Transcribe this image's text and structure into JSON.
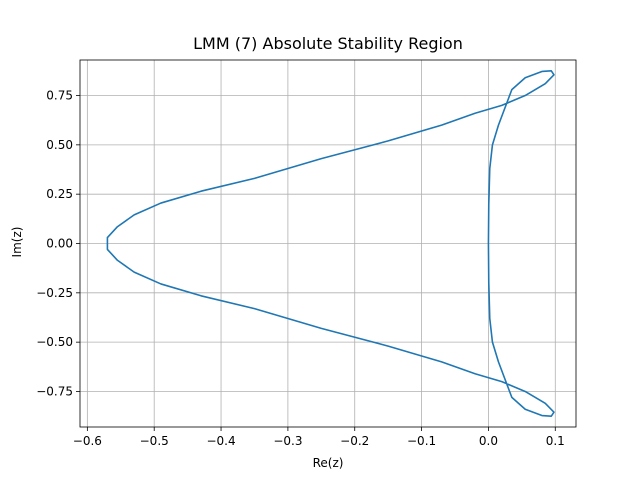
{
  "chart_data": {
    "type": "line",
    "title": "LMM (7) Absolute Stability Region",
    "xlabel": "Re(z)",
    "ylabel": "Im(z)",
    "xlim": [
      -0.611,
      0.131
    ],
    "ylim": [
      -0.93,
      0.93
    ],
    "xticks": [
      -0.6,
      -0.5,
      -0.4,
      -0.3,
      -0.2,
      -0.1,
      0.0,
      0.1
    ],
    "xtick_labels": [
      "−0.6",
      "−0.5",
      "−0.4",
      "−0.3",
      "−0.2",
      "−0.1",
      "0.0",
      "0.1"
    ],
    "yticks": [
      -0.75,
      -0.5,
      -0.25,
      0.0,
      0.25,
      0.5,
      0.75
    ],
    "ytick_labels": [
      "−0.75",
      "−0.50",
      "−0.25",
      "0.00",
      "0.25",
      "0.50",
      "0.75"
    ],
    "grid": true,
    "legend": "none",
    "colors": {
      "series": "#1f77b4"
    },
    "series": [
      {
        "points": [
          [
            0.0,
            0.0
          ],
          [
            0.0005,
            0.2
          ],
          [
            0.002,
            0.38
          ],
          [
            0.006,
            0.5
          ],
          [
            0.015,
            0.6
          ],
          [
            0.035,
            0.78
          ],
          [
            0.055,
            0.84
          ],
          [
            0.08,
            0.872
          ],
          [
            0.094,
            0.875
          ],
          [
            0.098,
            0.855
          ],
          [
            0.085,
            0.81
          ],
          [
            0.055,
            0.75
          ],
          [
            0.02,
            0.7
          ],
          [
            -0.02,
            0.66
          ],
          [
            -0.07,
            0.6
          ],
          [
            -0.15,
            0.52
          ],
          [
            -0.25,
            0.43
          ],
          [
            -0.35,
            0.33
          ],
          [
            -0.43,
            0.265
          ],
          [
            -0.49,
            0.205
          ],
          [
            -0.53,
            0.145
          ],
          [
            -0.555,
            0.085
          ],
          [
            -0.57,
            0.03
          ],
          [
            -0.57,
            -0.03
          ],
          [
            -0.555,
            -0.085
          ],
          [
            -0.53,
            -0.145
          ],
          [
            -0.49,
            -0.205
          ],
          [
            -0.43,
            -0.265
          ],
          [
            -0.35,
            -0.33
          ],
          [
            -0.25,
            -0.43
          ],
          [
            -0.15,
            -0.52
          ],
          [
            -0.07,
            -0.6
          ],
          [
            -0.02,
            -0.66
          ],
          [
            0.02,
            -0.7
          ],
          [
            0.055,
            -0.75
          ],
          [
            0.085,
            -0.81
          ],
          [
            0.098,
            -0.855
          ],
          [
            0.094,
            -0.875
          ],
          [
            0.08,
            -0.872
          ],
          [
            0.055,
            -0.84
          ],
          [
            0.035,
            -0.78
          ],
          [
            0.015,
            -0.6
          ],
          [
            0.006,
            -0.5
          ],
          [
            0.002,
            -0.38
          ],
          [
            0.0005,
            -0.2
          ],
          [
            0.0,
            0.0
          ]
        ]
      }
    ]
  }
}
